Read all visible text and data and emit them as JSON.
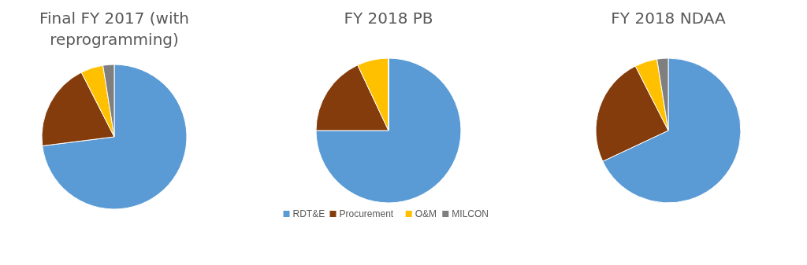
{
  "chart_data": [
    {
      "type": "pie",
      "title": "Final FY 2017 (with reprogramming)",
      "categories": [
        null,
        null,
        null,
        null
      ],
      "values": [
        73,
        19.5,
        5,
        2.5
      ],
      "colors": [
        "#5b9bd5",
        "#843c0c",
        "#ffc000",
        "#7f7f7f"
      ]
    },
    {
      "type": "pie",
      "title": "FY 2018 PB",
      "categories": [
        "RDT&E",
        "Procurement",
        "O&M",
        "MILCON"
      ],
      "values": [
        75,
        18,
        7,
        0
      ],
      "colors": [
        "#5b9bd5",
        "#843c0c",
        "#ffc000",
        "#7f7f7f"
      ],
      "legend": "bottom"
    },
    {
      "type": "pie",
      "title": "FY 2018 NDAA",
      "categories": [
        null,
        null,
        null,
        null
      ],
      "values": [
        68,
        24.5,
        5,
        2.5
      ],
      "colors": [
        "#5b9bd5",
        "#843c0c",
        "#ffc000",
        "#7f7f7f"
      ]
    }
  ]
}
